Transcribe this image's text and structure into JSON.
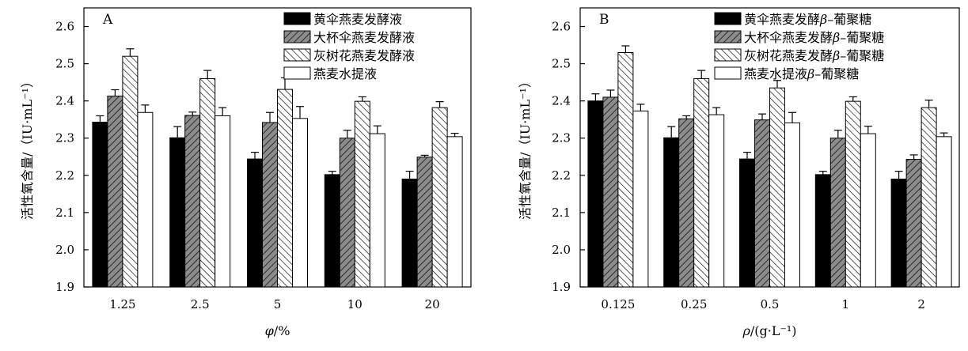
{
  "chart_data": [
    {
      "type": "bar",
      "panel_label": "A",
      "categories": [
        "1.25",
        "2.5",
        "5",
        "10",
        "20"
      ],
      "series": [
        {
          "name": "黄伞燕麦发酵液",
          "values": [
            2.343,
            2.301,
            2.244,
            2.202,
            2.19
          ],
          "errors": [
            0.017,
            0.03,
            0.018,
            0.009,
            0.021
          ],
          "pattern": "solid-black"
        },
        {
          "name": "大杯伞燕麦发酵液",
          "values": [
            2.413,
            2.361,
            2.342,
            2.3,
            2.249
          ],
          "errors": [
            0.017,
            0.009,
            0.027,
            0.021,
            0.005
          ],
          "pattern": "diag-dense"
        },
        {
          "name": "灰树花燕麦发酵液",
          "values": [
            2.52,
            2.46,
            2.431,
            2.399,
            2.382
          ],
          "errors": [
            0.02,
            0.022,
            0.031,
            0.012,
            0.016
          ],
          "pattern": "diag-sparse"
        },
        {
          "name": "燕麦水提液",
          "values": [
            2.369,
            2.36,
            2.353,
            2.312,
            2.304
          ],
          "errors": [
            0.02,
            0.022,
            0.032,
            0.021,
            0.009
          ],
          "pattern": "white"
        }
      ],
      "xlabel_var": "φ",
      "xlabel_unit": "/%",
      "ylabel": "活性氧含量/（IU·mL⁻¹）",
      "ylim": [
        1.9,
        2.65
      ],
      "yticks": [
        "1.9",
        "2.0",
        "2.1",
        "2.2",
        "2.3",
        "2.4",
        "2.5",
        "2.6"
      ],
      "grid": false,
      "legend_position": "top-right"
    },
    {
      "type": "bar",
      "panel_label": "B",
      "categories": [
        "0.125",
        "0.25",
        "0.5",
        "1",
        "2"
      ],
      "series": [
        {
          "name_prefix": "黄伞燕麦发酵",
          "name_greek": "β",
          "name_suffix": "–葡聚糖",
          "values": [
            2.4,
            2.301,
            2.244,
            2.202,
            2.19
          ],
          "errors": [
            0.019,
            0.03,
            0.018,
            0.009,
            0.021
          ],
          "pattern": "solid-black"
        },
        {
          "name_prefix": "大杯伞燕麦发酵",
          "name_greek": "β",
          "name_suffix": "–葡聚糖",
          "values": [
            2.41,
            2.352,
            2.349,
            2.3,
            2.243
          ],
          "errors": [
            0.019,
            0.008,
            0.016,
            0.021,
            0.012
          ],
          "pattern": "diag-dense"
        },
        {
          "name_prefix": "灰树花燕麦发酵",
          "name_greek": "β",
          "name_suffix": "–葡聚糖",
          "values": [
            2.53,
            2.46,
            2.435,
            2.399,
            2.382
          ],
          "errors": [
            0.018,
            0.022,
            0.02,
            0.012,
            0.02
          ],
          "pattern": "diag-sparse"
        },
        {
          "name_prefix": "燕麦水提液",
          "name_greek": "β",
          "name_suffix": "–葡聚糖",
          "values": [
            2.373,
            2.363,
            2.341,
            2.312,
            2.304
          ],
          "errors": [
            0.018,
            0.019,
            0.028,
            0.02,
            0.01
          ],
          "pattern": "white"
        }
      ],
      "xlabel_var": "ρ",
      "xlabel_unit": "/(g·L⁻¹)",
      "ylabel": "活性氧含量/（IU·mL⁻¹）",
      "ylim": [
        1.9,
        2.65
      ],
      "yticks": [
        "1.9",
        "2.0",
        "2.1",
        "2.2",
        "2.3",
        "2.4",
        "2.5",
        "2.6"
      ],
      "grid": false,
      "legend_position": "top-right"
    }
  ],
  "colors": {
    "bar_fill_dark": "#000000",
    "bar_fill_gray": "#8c8c8c",
    "bar_fill_light": "#ffffff",
    "axis": "#000000"
  }
}
